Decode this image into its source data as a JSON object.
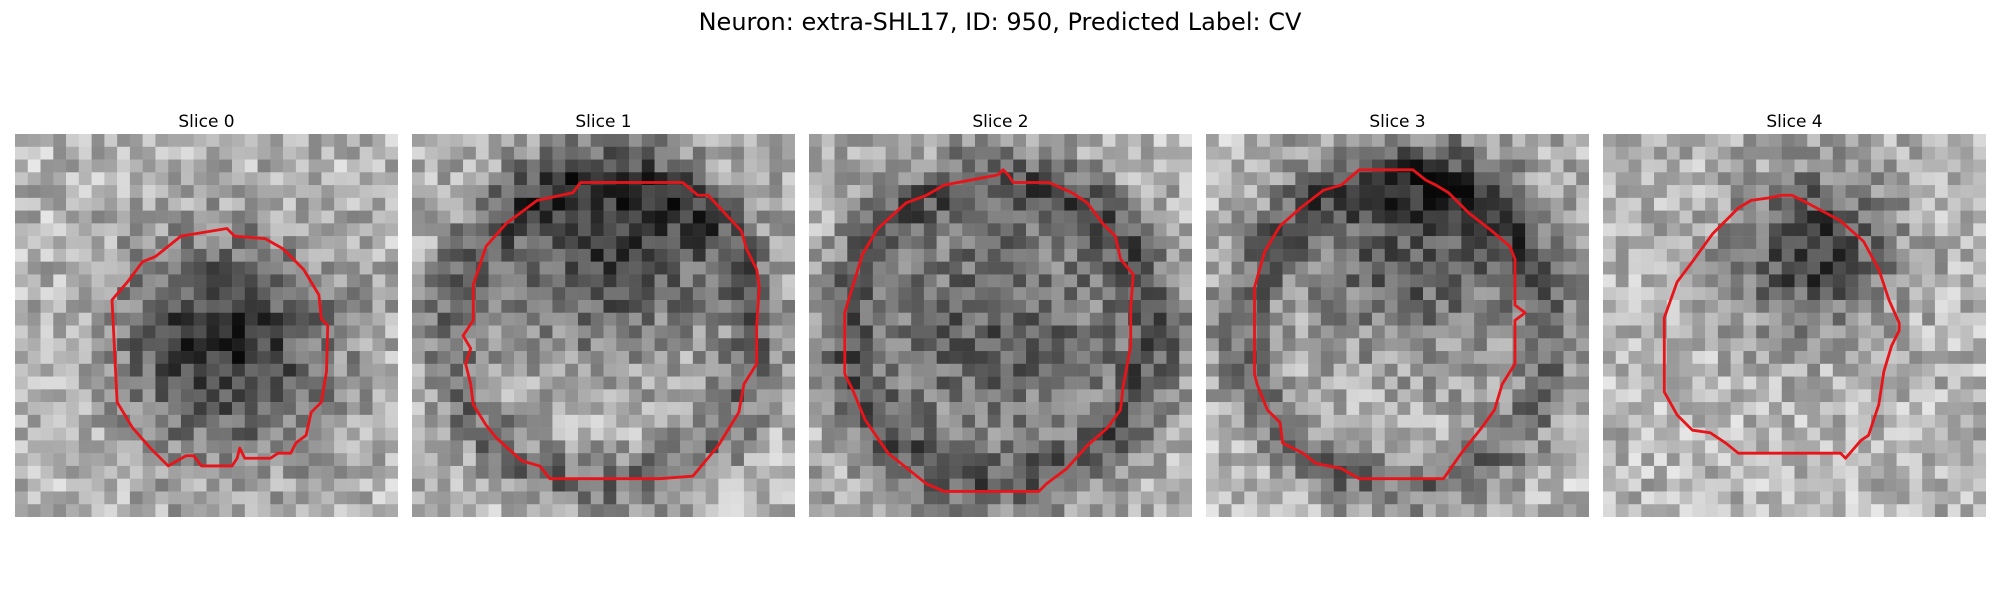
{
  "figure": {
    "title": "Neuron: extra-SHL17, ID: 950, Predicted Label: CV"
  },
  "colors": {
    "contour": "#e8141a",
    "background": "#ffffff"
  },
  "panels": [
    {
      "title": "Slice 0",
      "image_description": "grayscale microscopy patch, dark nucleus centre",
      "seed": 11,
      "dark_center": [
        0.55,
        0.55
      ],
      "dark_radius": 0.3,
      "dark_strength": 0.55,
      "ring": false
    },
    {
      "title": "Slice 1",
      "image_description": "grayscale microscopy patch, dark upper crescent",
      "seed": 23,
      "dark_center": [
        0.52,
        0.3
      ],
      "dark_radius": 0.3,
      "dark_strength": 0.45,
      "ring": true
    },
    {
      "title": "Slice 2",
      "image_description": "grayscale microscopy patch, dark ring around light centre",
      "seed": 37,
      "dark_center": [
        0.5,
        0.5
      ],
      "dark_radius": 0.4,
      "dark_strength": 0.35,
      "ring": true
    },
    {
      "title": "Slice 3",
      "image_description": "grayscale microscopy patch, dark ring with top crescent",
      "seed": 41,
      "dark_center": [
        0.55,
        0.28
      ],
      "dark_radius": 0.32,
      "dark_strength": 0.4,
      "ring": true
    },
    {
      "title": "Slice 4",
      "image_description": "grayscale microscopy patch, dark crescent at top",
      "seed": 53,
      "dark_center": [
        0.55,
        0.3
      ],
      "dark_radius": 0.22,
      "dark_strength": 0.5,
      "ring": false
    }
  ]
}
